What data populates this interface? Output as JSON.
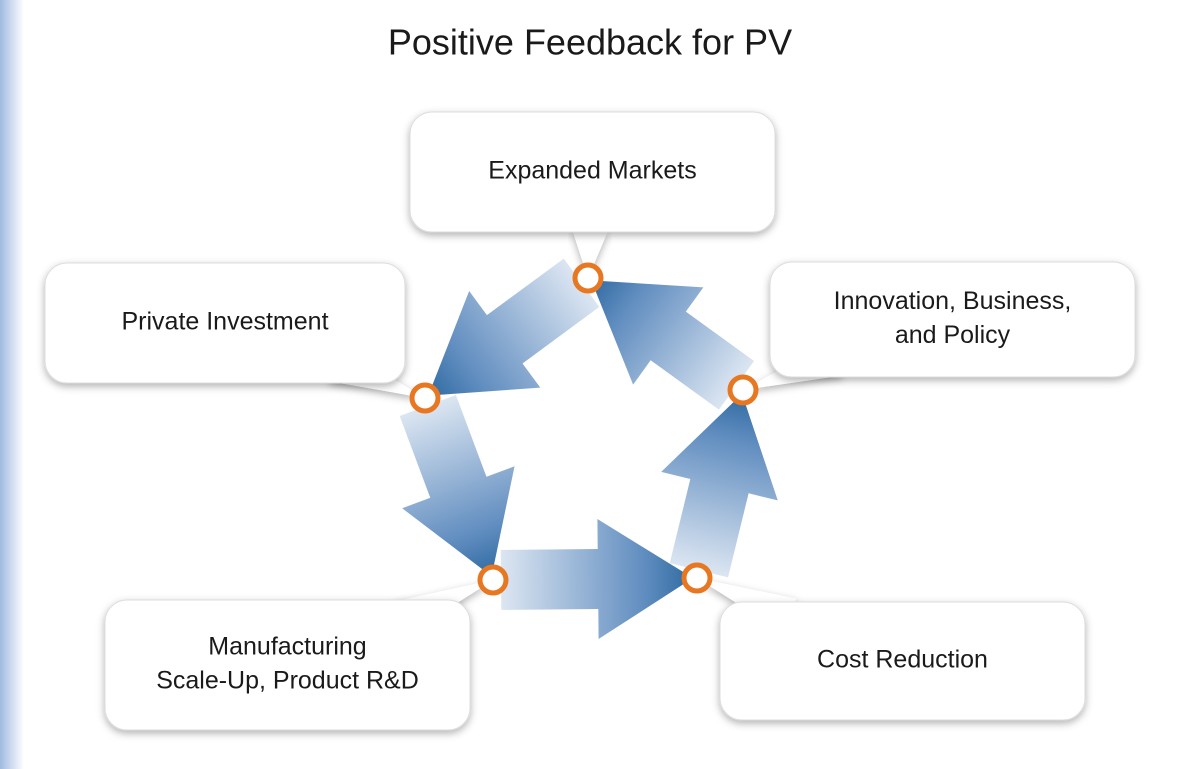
{
  "title": "Positive Feedback for PV",
  "nodes": [
    {
      "lines": [
        "Expanded Markets"
      ]
    },
    {
      "lines": [
        "Private Investment"
      ]
    },
    {
      "lines": [
        "Manufacturing",
        "Scale-Up, Product R&D"
      ]
    },
    {
      "lines": [
        "Cost Reduction"
      ]
    },
    {
      "lines": [
        "Innovation, Business,",
        "and Policy"
      ]
    }
  ]
}
